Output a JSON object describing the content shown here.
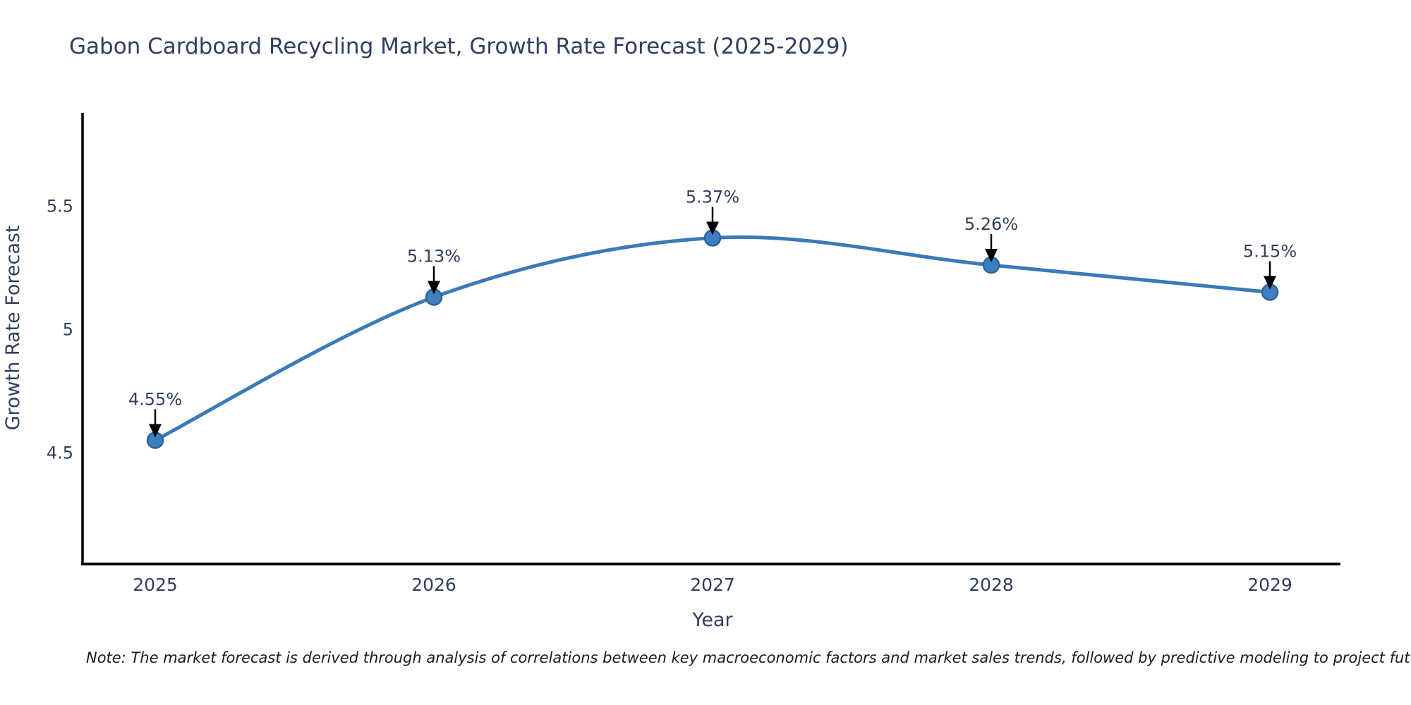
{
  "chart_data": {
    "type": "line",
    "title": "Gabon Cardboard Recycling Market, Growth Rate Forecast (2025-2029)",
    "xlabel": "Year",
    "ylabel": "Growth Rate Forecast",
    "categories": [
      "2025",
      "2026",
      "2027",
      "2028",
      "2029"
    ],
    "series": [
      {
        "name": "Growth Rate Forecast",
        "values": [
          4.55,
          5.13,
          5.37,
          5.26,
          5.15
        ]
      }
    ],
    "point_labels": [
      "4.55%",
      "5.13%",
      "5.37%",
      "5.26%",
      "5.15%"
    ],
    "yticks": [
      4.5,
      5,
      5.5
    ],
    "ylim": [
      4.05,
      5.88
    ],
    "grid": false,
    "legend": "none",
    "line_style": "smooth",
    "annotations": "value labels above each point with downward black arrows",
    "colors": {
      "line": "#3a7ab8",
      "marker_fill": "#3e7fc1",
      "marker_edge": "#2e6399",
      "text": "#2f3f5f",
      "annotation_arrow": "#000000",
      "axis_spine": "#000000",
      "background": "#ffffff"
    }
  },
  "footnote": "Note: The market forecast is derived through analysis of correlations between key macroeconomic factors and market sales trends, followed by predictive modeling to project future sales"
}
